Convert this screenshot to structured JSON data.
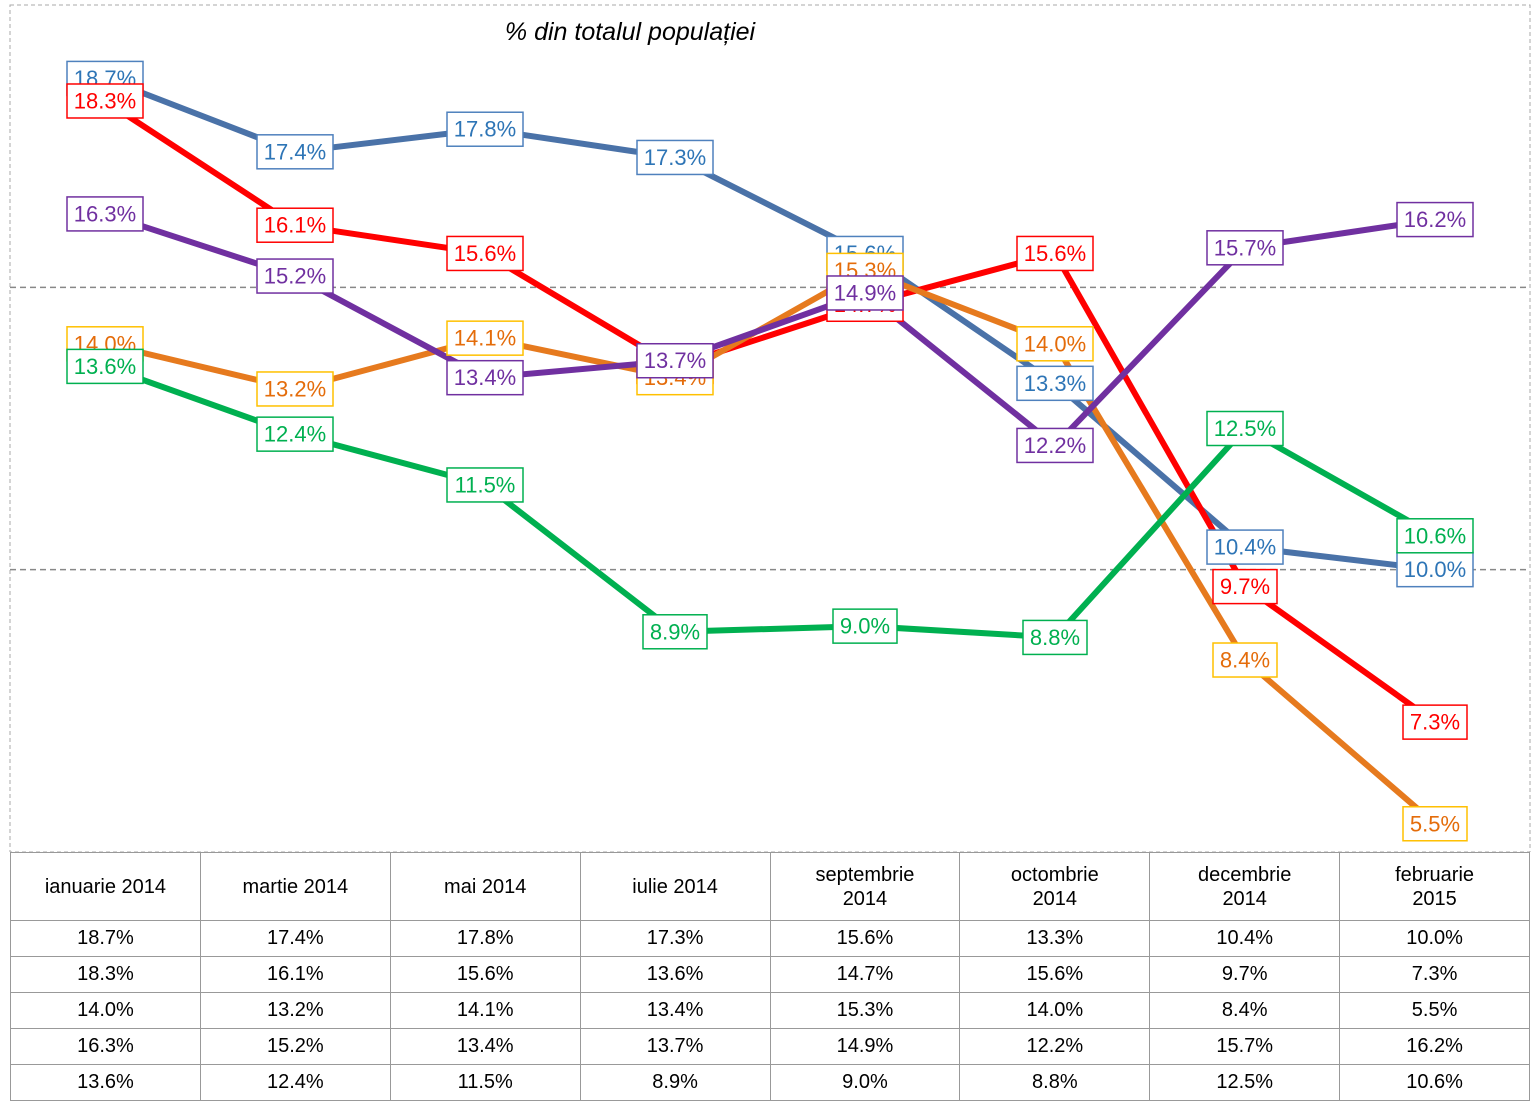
{
  "chart_data": {
    "type": "line",
    "title": "% din totalul populației",
    "categories": [
      "ianuarie 2014",
      "martie 2014",
      "mai 2014",
      "iulie 2014",
      "septembrie 2014",
      "octombrie 2014",
      "decembrie 2014",
      "februarie 2015"
    ],
    "ylim": [
      5,
      20
    ],
    "yticks": [
      10,
      15
    ],
    "grid": true,
    "series": [
      {
        "color": "#4a72a8",
        "label_color": "#2e75b6",
        "label_border": "#4f81bd",
        "values": [
          18.7,
          17.4,
          17.8,
          17.3,
          15.6,
          13.3,
          10.4,
          10.0
        ],
        "value_labels": [
          "18.7%",
          "17.4%",
          "17.8%",
          "17.3%",
          "15.6%",
          "13.3%",
          "10.4%",
          "10.0%"
        ]
      },
      {
        "color": "#ff0000",
        "label_color": "#ff0000",
        "label_border": "#ff0000",
        "values": [
          18.3,
          16.1,
          15.6,
          13.6,
          14.7,
          15.6,
          9.7,
          7.3
        ],
        "value_labels": [
          "18.3%",
          "16.1%",
          "15.6%",
          "13.6%",
          "14.7%",
          "15.6%",
          "9.7%",
          "7.3%"
        ]
      },
      {
        "color": "#e67a1e",
        "label_color": "#e46c0a",
        "label_border": "#ffc000",
        "values": [
          14.0,
          13.2,
          14.1,
          13.4,
          15.3,
          14.0,
          8.4,
          5.5
        ],
        "value_labels": [
          "14.0%",
          "13.2%",
          "14.1%",
          "13.4%",
          "15.3%",
          "14.0%",
          "8.4%",
          "5.5%"
        ]
      },
      {
        "color": "#7030a0",
        "label_color": "#7030a0",
        "label_border": "#7030a0",
        "values": [
          16.3,
          15.2,
          13.4,
          13.7,
          14.9,
          12.2,
          15.7,
          16.2
        ],
        "value_labels": [
          "16.3%",
          "15.2%",
          "13.4%",
          "13.7%",
          "14.9%",
          "12.2%",
          "15.7%",
          "16.2%"
        ]
      },
      {
        "color": "#00b050",
        "label_color": "#00b050",
        "label_border": "#00b050",
        "values": [
          13.6,
          12.4,
          11.5,
          8.9,
          9.0,
          8.8,
          12.5,
          10.6
        ],
        "value_labels": [
          "13.6%",
          "12.4%",
          "11.5%",
          "8.9%",
          "9.0%",
          "8.8%",
          "12.5%",
          "10.6%"
        ]
      }
    ]
  }
}
